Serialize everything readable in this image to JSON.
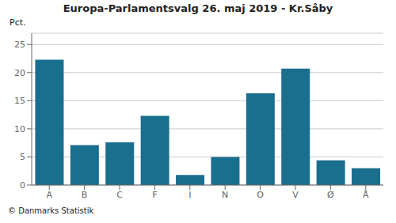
{
  "chart_data": {
    "type": "bar",
    "title": "Europa-Parlamentsvalg 26. maj 2019 - Kr.Såby",
    "ylabel": "Pct.",
    "annotations": [
      "© Danmarks Statistik"
    ],
    "categories": [
      "A",
      "B",
      "C",
      "F",
      "I",
      "N",
      "O",
      "V",
      "Ø",
      "Å"
    ],
    "values": [
      22.3,
      7.1,
      7.6,
      12.3,
      1.8,
      5.0,
      16.3,
      20.7,
      4.4,
      3.0
    ],
    "color": "#1a6e8e",
    "ylim": [
      0,
      27
    ],
    "yticks": [
      0,
      5,
      10,
      15,
      20,
      25
    ],
    "grid": true
  }
}
